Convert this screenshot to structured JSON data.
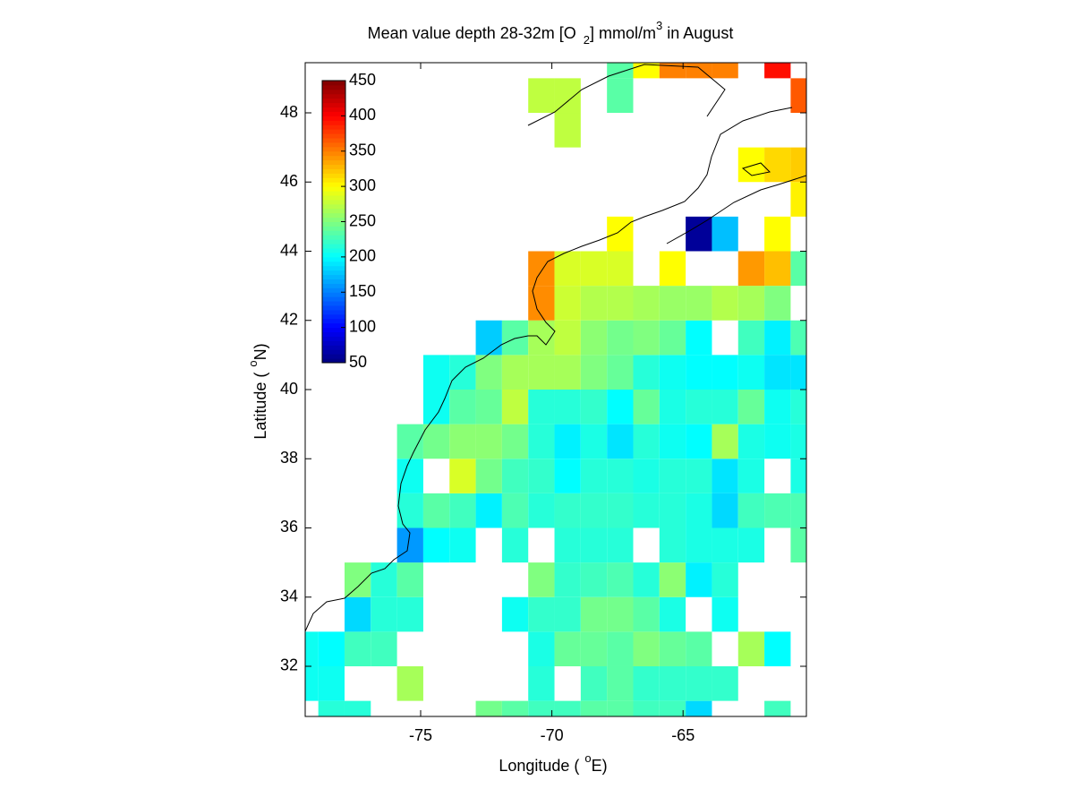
{
  "chart_data": {
    "type": "heatmap",
    "title": {
      "main": "Mean value depth 28-32m [O",
      "sub": "2",
      "mid": "] mmol/m",
      "sup": "3",
      "end": " in August"
    },
    "xlabel": {
      "main": "Longitude (",
      "sup": "o",
      "end": "E)"
    },
    "ylabel": {
      "main": "Latitude (",
      "sup": "o",
      "end": "N)"
    },
    "colormap": "jet",
    "clim": [
      50,
      450
    ],
    "cticks": [
      50,
      100,
      150,
      200,
      250,
      300,
      350,
      400,
      450
    ],
    "x": [
      -79.4,
      -78.4,
      -77.4,
      -76.4,
      -75.4,
      -74.4,
      -73.4,
      -72.4,
      -71.4,
      -70.4,
      -69.4,
      -68.4,
      -67.4,
      -66.4,
      -65.4,
      -64.4,
      -63.4,
      -62.4,
      -61.4,
      -60.4
    ],
    "y": [
      30.5,
      31.5,
      32.5,
      33.5,
      34.5,
      35.5,
      36.5,
      37.5,
      38.5,
      39.5,
      40.5,
      41.5,
      42.5,
      43.5,
      44.5,
      45.5,
      46.5,
      47.5,
      48.5,
      49.5
    ],
    "values": [
      [
        null,
        215,
        215,
        null,
        null,
        null,
        null,
        245,
        235,
        225,
        225,
        235,
        235,
        225,
        225,
        185,
        null,
        null,
        225,
        null
      ],
      [
        205,
        205,
        null,
        null,
        265,
        null,
        null,
        null,
        null,
        215,
        null,
        225,
        235,
        220,
        220,
        220,
        220,
        null,
        null,
        null
      ],
      [
        205,
        200,
        225,
        225,
        null,
        null,
        null,
        null,
        null,
        210,
        240,
        240,
        235,
        250,
        240,
        235,
        null,
        265,
        200,
        null
      ],
      [
        null,
        null,
        185,
        215,
        215,
        null,
        null,
        null,
        205,
        220,
        220,
        245,
        245,
        235,
        210,
        null,
        205,
        null,
        null,
        null
      ],
      [
        null,
        null,
        250,
        215,
        235,
        null,
        null,
        null,
        null,
        250,
        220,
        225,
        230,
        215,
        255,
        195,
        215,
        null,
        null,
        null
      ],
      [
        null,
        null,
        null,
        null,
        160,
        200,
        205,
        null,
        215,
        null,
        215,
        215,
        215,
        null,
        215,
        210,
        210,
        210,
        null,
        235
      ],
      [
        null,
        null,
        null,
        null,
        215,
        235,
        225,
        195,
        230,
        215,
        220,
        220,
        220,
        215,
        215,
        210,
        185,
        225,
        230,
        230
      ],
      [
        null,
        null,
        null,
        null,
        205,
        null,
        285,
        245,
        225,
        220,
        200,
        215,
        215,
        210,
        215,
        215,
        190,
        210,
        null,
        210
      ],
      [
        null,
        null,
        null,
        null,
        235,
        245,
        255,
        255,
        245,
        215,
        195,
        210,
        190,
        215,
        205,
        200,
        265,
        210,
        205,
        210
      ],
      [
        null,
        null,
        null,
        null,
        null,
        205,
        235,
        240,
        275,
        215,
        215,
        220,
        200,
        240,
        210,
        215,
        215,
        240,
        205,
        215
      ],
      [
        null,
        null,
        null,
        null,
        null,
        205,
        215,
        250,
        265,
        265,
        265,
        250,
        240,
        215,
        205,
        200,
        200,
        205,
        190,
        190
      ],
      [
        null,
        null,
        null,
        null,
        null,
        null,
        null,
        180,
        235,
        265,
        275,
        255,
        245,
        250,
        240,
        200,
        null,
        225,
        195,
        230
      ],
      [
        null,
        null,
        null,
        null,
        null,
        null,
        null,
        null,
        null,
        345,
        280,
        270,
        270,
        265,
        260,
        260,
        270,
        265,
        250,
        null
      ],
      [
        null,
        null,
        null,
        null,
        null,
        null,
        null,
        null,
        null,
        345,
        285,
        285,
        285,
        null,
        300,
        null,
        null,
        340,
        325,
        235
      ],
      [
        null,
        null,
        null,
        null,
        null,
        null,
        null,
        null,
        null,
        null,
        null,
        null,
        300,
        null,
        null,
        60,
        175,
        null,
        300,
        null
      ],
      [
        null,
        null,
        null,
        null,
        null,
        null,
        null,
        null,
        null,
        null,
        null,
        null,
        null,
        null,
        null,
        null,
        null,
        null,
        null,
        305
      ],
      [
        null,
        null,
        null,
        null,
        null,
        null,
        null,
        null,
        null,
        null,
        null,
        null,
        null,
        null,
        null,
        null,
        null,
        300,
        315,
        320
      ],
      [
        null,
        null,
        null,
        null,
        null,
        null,
        null,
        null,
        null,
        null,
        275,
        null,
        null,
        null,
        null,
        null,
        null,
        null,
        null,
        null
      ],
      [
        null,
        null,
        null,
        null,
        null,
        null,
        null,
        null,
        null,
        275,
        275,
        null,
        235,
        null,
        null,
        null,
        null,
        null,
        null,
        365
      ],
      [
        null,
        null,
        null,
        null,
        null,
        null,
        null,
        null,
        null,
        null,
        null,
        null,
        235,
        300,
        350,
        350,
        350,
        null,
        395,
        null
      ]
    ],
    "xlim": [
      -79.4,
      -60.3
    ],
    "ylim": [
      30.55,
      49.45
    ],
    "xticks": [
      -75,
      -70,
      -65
    ],
    "yticks": [
      32,
      34,
      36,
      38,
      40,
      42,
      44,
      46,
      48
    ]
  }
}
